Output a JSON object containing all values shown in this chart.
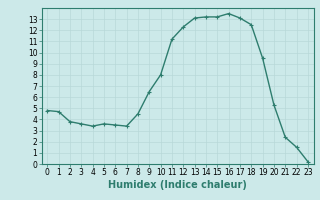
{
  "x": [
    0,
    1,
    2,
    3,
    4,
    5,
    6,
    7,
    8,
    9,
    10,
    11,
    12,
    13,
    14,
    15,
    16,
    17,
    18,
    19,
    20,
    21,
    22,
    23
  ],
  "y": [
    4.8,
    4.7,
    3.8,
    3.6,
    3.4,
    3.6,
    3.5,
    3.4,
    4.5,
    6.5,
    8.0,
    11.2,
    12.3,
    13.1,
    13.2,
    13.2,
    13.5,
    13.1,
    12.5,
    9.5,
    5.3,
    2.4,
    1.5,
    0.2
  ],
  "line_color": "#2e7d6e",
  "marker": "+",
  "marker_size": 3,
  "bg_color": "#cce9e9",
  "grid_color": "#b8d8d8",
  "xlabel": "Humidex (Indice chaleur)",
  "xlim": [
    -0.5,
    23.5
  ],
  "ylim": [
    0,
    14
  ],
  "xticks": [
    0,
    1,
    2,
    3,
    4,
    5,
    6,
    7,
    8,
    9,
    10,
    11,
    12,
    13,
    14,
    15,
    16,
    17,
    18,
    19,
    20,
    21,
    22,
    23
  ],
  "yticks": [
    0,
    1,
    2,
    3,
    4,
    5,
    6,
    7,
    8,
    9,
    10,
    11,
    12,
    13
  ],
  "tick_fontsize": 5.5,
  "xlabel_fontsize": 7,
  "line_width": 1.0
}
